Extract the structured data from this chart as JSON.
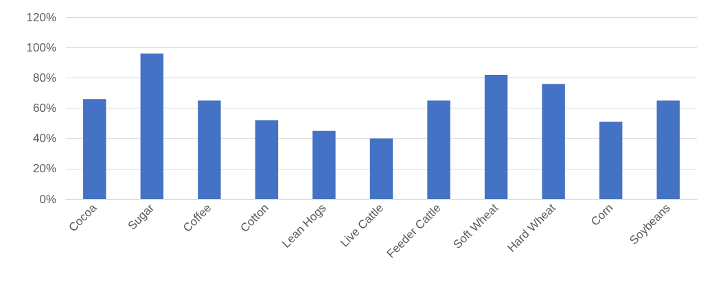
{
  "chart_data": {
    "type": "bar",
    "categories": [
      "Cocoa",
      "Sugar",
      "Coffee",
      "Cotton",
      "Lean Hogs",
      "Live Cattle",
      "Feeder Cattle",
      "Soft Wheat",
      "Hard Wheat",
      "Corn",
      "Soybeans"
    ],
    "values": [
      66,
      96,
      65,
      52,
      45,
      40,
      65,
      82,
      76,
      51,
      65
    ],
    "color": "#4472c4",
    "ylim": [
      0,
      120
    ],
    "yticks": [
      {
        "value": 0,
        "label": "0%"
      },
      {
        "value": 20,
        "label": "20%"
      },
      {
        "value": 40,
        "label": "40%"
      },
      {
        "value": 60,
        "label": "60%"
      },
      {
        "value": 80,
        "label": "80%"
      },
      {
        "value": 100,
        "label": "100%"
      },
      {
        "value": 120,
        "label": "120%"
      }
    ],
    "grid": "y"
  }
}
